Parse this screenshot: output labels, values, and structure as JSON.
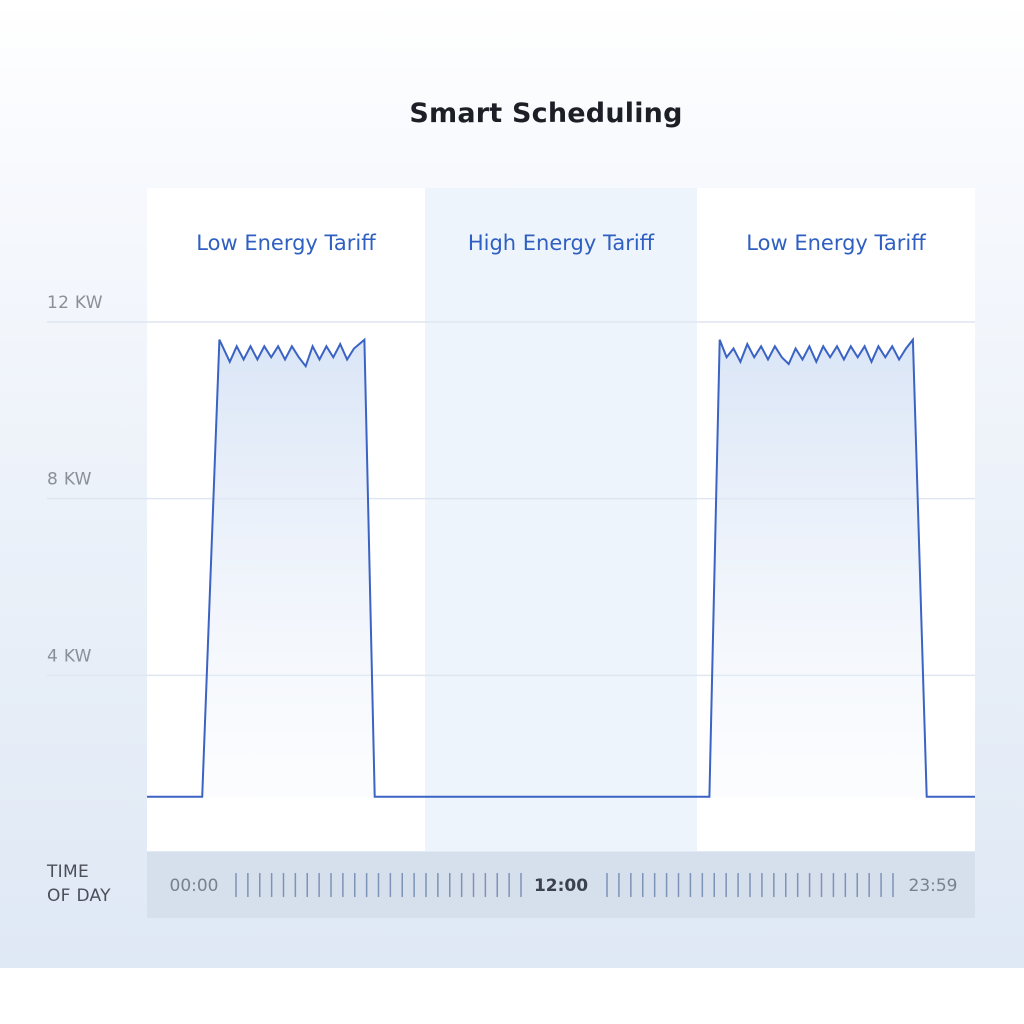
{
  "chart_data": {
    "type": "area",
    "title": "Smart Scheduling",
    "ylabel": "",
    "xlabel": "TIME OF DAY",
    "ylim": [
      0,
      12
    ],
    "y_ticks": [
      {
        "value": 4,
        "label": "4 KW"
      },
      {
        "value": 8,
        "label": "8 KW"
      },
      {
        "value": 12,
        "label": "12 KW"
      }
    ],
    "x_ticks": [
      {
        "value": 0,
        "label": "00:00"
      },
      {
        "value": 12,
        "label": "12:00"
      },
      {
        "value": 23.98,
        "label": "23:59"
      }
    ],
    "xlim": [
      0,
      24
    ],
    "zones": [
      {
        "label": "Low Energy Tariff",
        "start": 0,
        "end": 8,
        "tariff": "low"
      },
      {
        "label": "High Energy Tariff",
        "start": 8,
        "end": 16,
        "tariff": "high"
      },
      {
        "label": "Low Energy Tariff",
        "start": 16,
        "end": 24,
        "tariff": "low"
      }
    ],
    "series": [
      {
        "values": [
          [
            0,
            1.25
          ],
          [
            1.6,
            1.25
          ],
          [
            2.1,
            11.6
          ],
          [
            2.4,
            11.1
          ],
          [
            2.6,
            11.45
          ],
          [
            2.8,
            11.15
          ],
          [
            3.0,
            11.45
          ],
          [
            3.2,
            11.15
          ],
          [
            3.4,
            11.45
          ],
          [
            3.6,
            11.2
          ],
          [
            3.8,
            11.45
          ],
          [
            4.0,
            11.15
          ],
          [
            4.2,
            11.45
          ],
          [
            4.4,
            11.2
          ],
          [
            4.6,
            11.0
          ],
          [
            4.8,
            11.45
          ],
          [
            5.0,
            11.15
          ],
          [
            5.2,
            11.45
          ],
          [
            5.4,
            11.2
          ],
          [
            5.6,
            11.5
          ],
          [
            5.8,
            11.15
          ],
          [
            6.0,
            11.4
          ],
          [
            6.3,
            11.6
          ],
          [
            6.6,
            1.25
          ],
          [
            16.3,
            1.25
          ],
          [
            16.6,
            11.6
          ],
          [
            16.8,
            11.2
          ],
          [
            17.0,
            11.4
          ],
          [
            17.2,
            11.1
          ],
          [
            17.4,
            11.5
          ],
          [
            17.6,
            11.2
          ],
          [
            17.8,
            11.45
          ],
          [
            18.0,
            11.15
          ],
          [
            18.2,
            11.45
          ],
          [
            18.4,
            11.2
          ],
          [
            18.6,
            11.05
          ],
          [
            18.8,
            11.4
          ],
          [
            19.0,
            11.15
          ],
          [
            19.2,
            11.45
          ],
          [
            19.4,
            11.1
          ],
          [
            19.6,
            11.45
          ],
          [
            19.8,
            11.2
          ],
          [
            20.0,
            11.45
          ],
          [
            20.2,
            11.15
          ],
          [
            20.4,
            11.45
          ],
          [
            20.6,
            11.2
          ],
          [
            20.8,
            11.45
          ],
          [
            21.0,
            11.1
          ],
          [
            21.2,
            11.45
          ],
          [
            21.4,
            11.2
          ],
          [
            21.6,
            11.45
          ],
          [
            21.8,
            11.15
          ],
          [
            22.0,
            11.4
          ],
          [
            22.2,
            11.6
          ],
          [
            22.6,
            1.25
          ],
          [
            24,
            1.25
          ]
        ]
      }
    ],
    "colors": {
      "line": "#3b63c4",
      "zone_label": "#2f5fc0",
      "low_zone_bg": "#ffffff",
      "high_zone_bg": "#eef4fc",
      "gridline": "#dfe6f0",
      "tick_label": "#8a8f98",
      "axis_strip": "#d6dfec",
      "axis_ticks": "#7d93b8"
    },
    "grid": true,
    "legend": "none"
  }
}
